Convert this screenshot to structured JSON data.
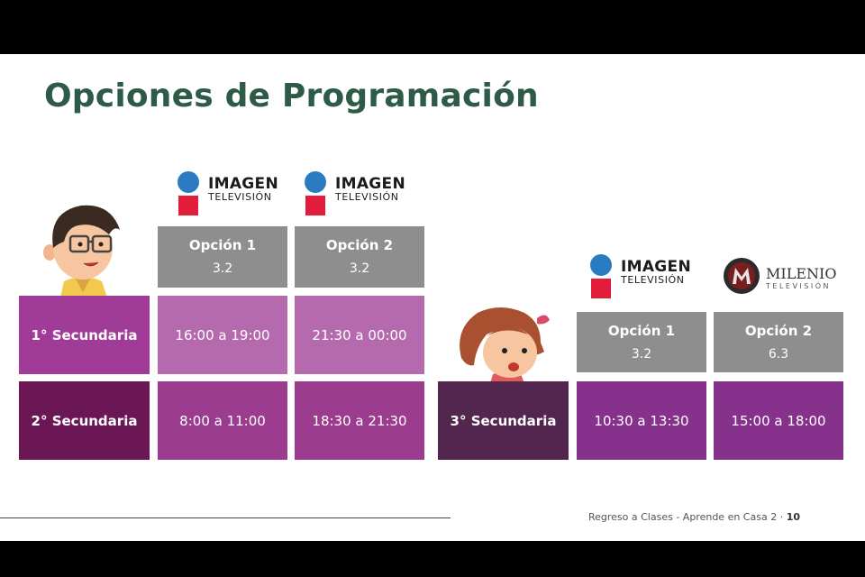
{
  "title": "Opciones de Programación",
  "logos": {
    "imagen_main": "IMAGEN",
    "imagen_sub": "TELEVISIÓN",
    "milenio_main": "MILENIO",
    "milenio_sub": "TELEVISIÓN"
  },
  "group1": {
    "options": [
      {
        "label": "Opción 1",
        "channel": "3.2"
      },
      {
        "label": "Opción 2",
        "channel": "3.2"
      }
    ],
    "rows": [
      {
        "label": "1° Secundaria",
        "values": [
          "16:00 a 19:00",
          "21:30 a 00:00"
        ]
      },
      {
        "label": "2° Secundaria",
        "values": [
          "8:00 a 11:00",
          "18:30 a 21:30"
        ]
      }
    ]
  },
  "group2": {
    "options": [
      {
        "label": "Opción 1",
        "channel": "3.2"
      },
      {
        "label": "Opción 2",
        "channel": "6.3"
      }
    ],
    "rows": [
      {
        "label": "3° Secundaria",
        "values": [
          "10:30 a 13:30",
          "15:00 a 18:00"
        ]
      }
    ]
  },
  "footer": {
    "text": "Regreso a Clases - Aprende en Casa 2 · ",
    "page": "10"
  },
  "colors": {
    "title": "#2e5a48",
    "header_gray": "#8e8e8e",
    "row1_label": "#a03c97",
    "row1_cell": "#b66aae",
    "row2_label": "#6c1755",
    "row2_cell": "#9b3c8e",
    "row3_label": "#52264f",
    "row3_cell": "#86318c",
    "imagen_blue": "#2a7bc1",
    "imagen_red": "#e11d3b"
  }
}
